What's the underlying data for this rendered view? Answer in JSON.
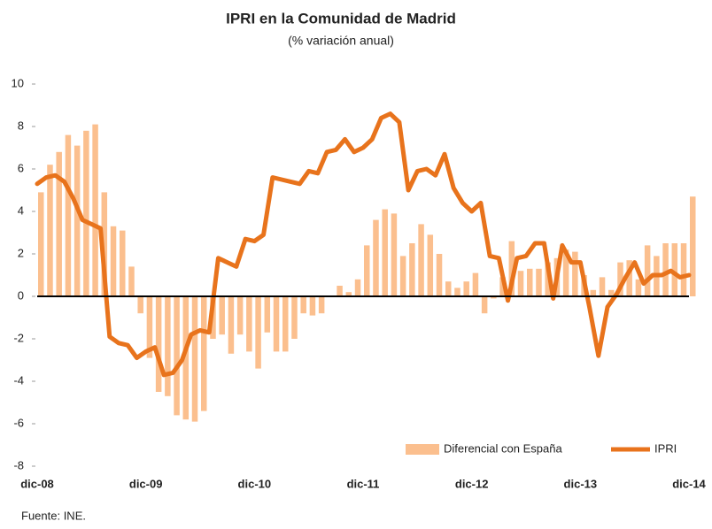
{
  "chart_data": {
    "type": "bar_line",
    "title": "IPRI en la Comunidad de Madrid",
    "subtitle": "(% variación anual)",
    "note": "Fuente: INE.",
    "categories": [
      "dic-08",
      null,
      null,
      null,
      null,
      null,
      null,
      null,
      null,
      null,
      null,
      null,
      "dic-09",
      null,
      null,
      null,
      null,
      null,
      null,
      null,
      null,
      null,
      null,
      null,
      "dic-10",
      null,
      null,
      null,
      null,
      null,
      null,
      null,
      null,
      null,
      null,
      null,
      "dic-11",
      null,
      null,
      null,
      null,
      null,
      null,
      null,
      null,
      null,
      null,
      null,
      "dic-12",
      null,
      null,
      null,
      null,
      null,
      null,
      null,
      null,
      null,
      null,
      null,
      "dic-13",
      null,
      null,
      null,
      null,
      null,
      null,
      null,
      null,
      null,
      null,
      null,
      "dic-14"
    ],
    "series": [
      {
        "name": "Diferencial con España",
        "kind": "bar",
        "color": "#fbbf8e",
        "values": [
          4.9,
          6.2,
          6.8,
          7.6,
          7.1,
          7.8,
          8.1,
          4.9,
          3.3,
          3.1,
          1.4,
          -0.8,
          -2.9,
          -4.5,
          -4.7,
          -5.6,
          -5.8,
          -5.9,
          -5.4,
          -2.0,
          -1.8,
          -2.7,
          -1.8,
          -2.6,
          -3.4,
          -1.7,
          -2.6,
          -2.6,
          -2.0,
          -0.8,
          -0.9,
          -0.8,
          0,
          0.5,
          0.2,
          0.8,
          2.4,
          3.6,
          4.1,
          3.9,
          1.9,
          2.5,
          3.4,
          2.9,
          2.0,
          0.7,
          0.4,
          0.7,
          1.1,
          -0.8,
          -0.1,
          0.9,
          2.6,
          1.2,
          1.3,
          1.3,
          1.6,
          1.8,
          2.2,
          2.1,
          1.0,
          0.3,
          0.9,
          0.3,
          1.6,
          1.7,
          0.8,
          2.4,
          1.9,
          2.5,
          2.5,
          2.5,
          4.7
        ]
      },
      {
        "name": "IPRI",
        "kind": "line",
        "color": "#e8731c",
        "values": [
          5.3,
          5.6,
          5.7,
          5.4,
          4.6,
          3.6,
          3.4,
          3.2,
          -1.9,
          -2.2,
          -2.3,
          -2.9,
          -2.6,
          -2.4,
          -3.7,
          -3.6,
          -3.0,
          -1.8,
          -1.6,
          -1.7,
          1.8,
          1.6,
          1.4,
          2.7,
          2.6,
          2.9,
          5.6,
          5.5,
          5.4,
          5.3,
          5.9,
          5.8,
          6.8,
          6.9,
          7.4,
          6.8,
          7.0,
          7.4,
          8.4,
          8.6,
          8.2,
          5.0,
          5.9,
          6.0,
          5.7,
          6.7,
          5.1,
          4.4,
          4.0,
          4.4,
          1.9,
          1.8,
          -0.2,
          1.8,
          1.9,
          2.5,
          2.5,
          -0.1,
          2.4,
          1.6,
          1.6,
          -0.5,
          -2.8,
          -0.5,
          0.1,
          0.9,
          1.6,
          0.6,
          1.0,
          1.0,
          1.2,
          0.9,
          1.0
        ]
      }
    ],
    "ylim": [
      -8,
      10
    ],
    "yticks": [
      -8,
      -6,
      -4,
      -2,
      0,
      2,
      4,
      6,
      8,
      10
    ],
    "grid": false,
    "legend": "lower right"
  }
}
